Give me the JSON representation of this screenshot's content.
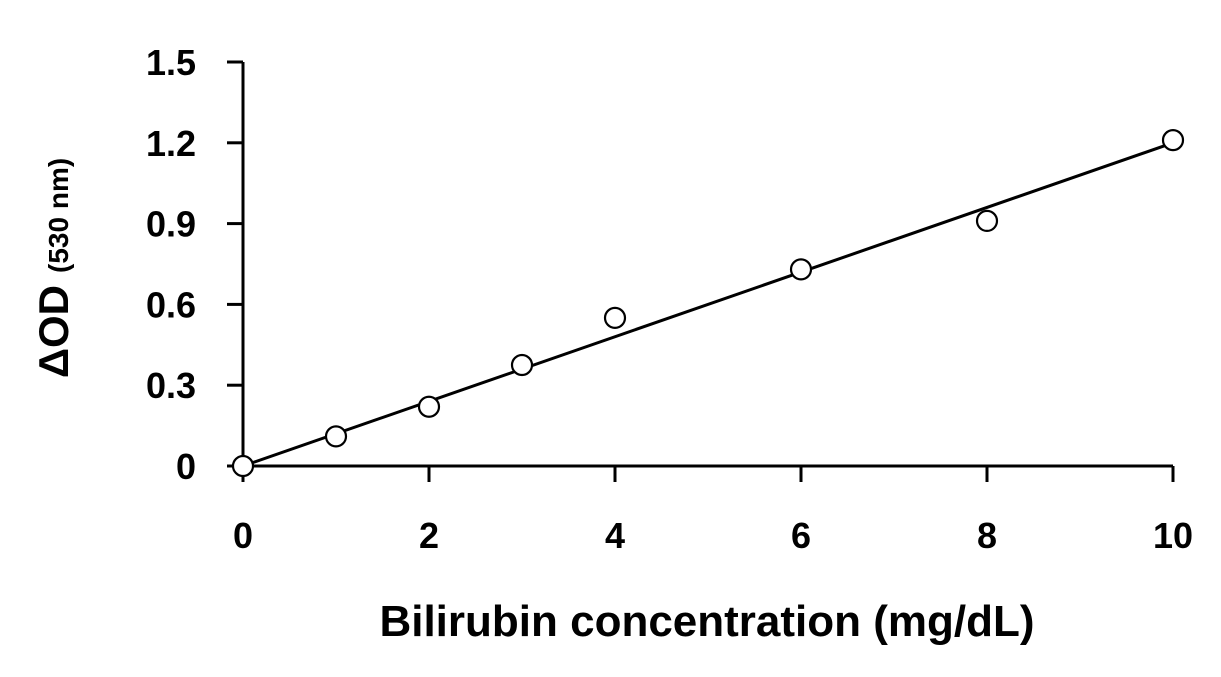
{
  "chart_data": {
    "type": "scatter",
    "title": "",
    "xlabel": "Bilirubin concentration (mg/dL)",
    "ylabel": {
      "main": "ΔOD",
      "sub": "(530 nm)"
    },
    "xlim": [
      0,
      10
    ],
    "ylim": [
      0,
      1.5
    ],
    "x_ticks": [
      "0",
      "2",
      "4",
      "6",
      "8",
      "10"
    ],
    "y_ticks": [
      "0",
      "0.3",
      "0.6",
      "0.9",
      "1.2",
      "1.5"
    ],
    "grid": false,
    "legend": "none",
    "series": [
      {
        "marker": "open-circle",
        "x": [
          0,
          1,
          2,
          3,
          4,
          6,
          8,
          10
        ],
        "y": [
          0,
          0.11,
          0.22,
          0.375,
          0.55,
          0.73,
          0.91,
          1.21
        ]
      }
    ],
    "trendline": {
      "type": "linear",
      "x": [
        0,
        10
      ],
      "y": [
        0,
        1.2
      ]
    },
    "colors": {
      "axis": "#000000",
      "marker_stroke": "#000000",
      "marker_fill": "#ffffff",
      "line": "#000000"
    }
  }
}
